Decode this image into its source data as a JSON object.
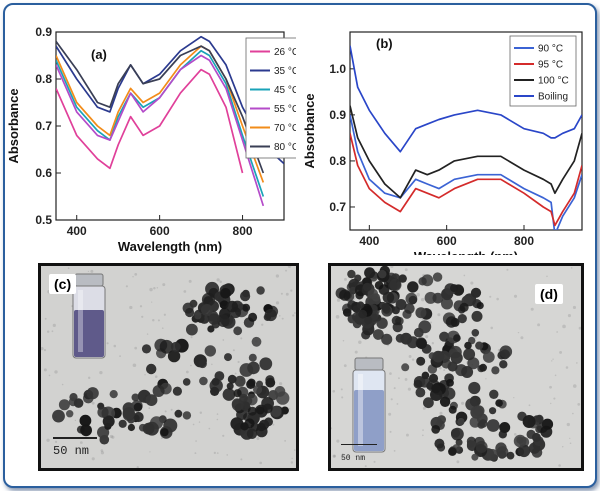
{
  "colors": {
    "frame": "#2b5f9e"
  },
  "chart_data": [
    {
      "type": "line",
      "panel_label": "(a)",
      "xlabel": "Wavelength (nm)",
      "ylabel": "Absorbance",
      "xlim": [
        350,
        900
      ],
      "ylim": [
        0.5,
        0.9
      ],
      "xticks": [
        400,
        600,
        800
      ],
      "yticks": [
        0.5,
        0.6,
        0.7,
        0.8,
        0.9
      ],
      "ytick_labels": [
        "0.5",
        "0.6",
        "0.7",
        "0.8",
        "0.9"
      ],
      "legend_position": "top-right",
      "x": [
        350,
        400,
        450,
        480,
        500,
        530,
        560,
        600,
        650,
        700,
        720,
        760,
        800,
        850,
        900
      ],
      "series": [
        {
          "name": "26 °C",
          "color": "#e0409a",
          "values": [
            0.78,
            0.68,
            0.63,
            0.61,
            0.66,
            0.72,
            0.68,
            0.7,
            0.77,
            0.82,
            0.81,
            0.74,
            0.6,
            null,
            null
          ]
        },
        {
          "name": "35 °C",
          "color": "#2b3a8f",
          "values": [
            0.87,
            0.8,
            0.74,
            0.73,
            0.78,
            0.83,
            0.79,
            0.81,
            0.86,
            0.89,
            0.88,
            0.83,
            0.74,
            0.66,
            0.62
          ]
        },
        {
          "name": "45 °C",
          "color": "#1aa3b8",
          "values": [
            0.84,
            0.74,
            0.69,
            0.67,
            0.72,
            0.77,
            0.74,
            0.76,
            0.82,
            0.86,
            0.85,
            0.79,
            0.68,
            0.55,
            null
          ]
        },
        {
          "name": "55 °C",
          "color": "#b44bc9",
          "values": [
            0.83,
            0.73,
            0.68,
            0.67,
            0.71,
            0.77,
            0.73,
            0.76,
            0.82,
            0.85,
            0.84,
            0.78,
            0.67,
            0.53,
            null
          ]
        },
        {
          "name": "70 °C",
          "color": "#f28c1a",
          "values": [
            0.85,
            0.75,
            0.7,
            0.68,
            0.73,
            0.78,
            0.75,
            0.77,
            0.83,
            0.87,
            0.86,
            0.8,
            0.7,
            0.58,
            null
          ]
        },
        {
          "name": "80 °C",
          "color": "#3a3f55",
          "values": [
            0.88,
            0.82,
            0.75,
            0.74,
            0.79,
            0.83,
            0.79,
            0.8,
            0.85,
            0.87,
            0.86,
            0.8,
            0.72,
            0.6,
            null
          ]
        }
      ]
    },
    {
      "type": "line",
      "panel_label": "(b)",
      "xlabel": "Wavelength (nm)",
      "ylabel": "Absorbance",
      "xlim": [
        350,
        950
      ],
      "ylim": [
        0.65,
        1.08
      ],
      "xticks": [
        400,
        600,
        800
      ],
      "yticks": [
        0.7,
        0.8,
        0.9,
        1.0
      ],
      "ytick_labels": [
        "0.7",
        "0.8",
        "0.9",
        "1.0"
      ],
      "legend_position": "top-right",
      "x": [
        350,
        370,
        400,
        440,
        480,
        520,
        550,
        580,
        620,
        680,
        740,
        800,
        850,
        870,
        880,
        900,
        930,
        950
      ],
      "series": [
        {
          "name": "90 °C",
          "color": "#3b63d4",
          "values": [
            0.9,
            0.82,
            0.76,
            0.73,
            0.72,
            0.76,
            0.75,
            0.74,
            0.76,
            0.77,
            0.77,
            0.74,
            0.72,
            0.71,
            0.64,
            0.68,
            0.72,
            0.77
          ]
        },
        {
          "name": "95 °C",
          "color": "#d42b2b",
          "values": [
            0.86,
            0.79,
            0.74,
            0.71,
            0.69,
            0.74,
            0.73,
            0.72,
            0.74,
            0.76,
            0.76,
            0.73,
            0.7,
            0.69,
            0.66,
            0.69,
            0.73,
            0.79
          ]
        },
        {
          "name": "100 °C",
          "color": "#222222",
          "values": [
            0.92,
            0.85,
            0.8,
            0.75,
            0.72,
            0.78,
            0.77,
            0.78,
            0.8,
            0.81,
            0.81,
            0.78,
            0.76,
            0.75,
            0.73,
            0.76,
            0.8,
            0.86
          ]
        },
        {
          "name": "Boiling",
          "color": "#2a46c8",
          "values": [
            1.05,
            0.96,
            0.91,
            0.86,
            0.82,
            0.87,
            0.88,
            0.89,
            0.9,
            0.91,
            0.9,
            0.87,
            0.86,
            0.85,
            0.85,
            0.86,
            0.87,
            0.9
          ]
        }
      ]
    }
  ],
  "tem": [
    {
      "label": "(c)",
      "scale_text": "50 nm"
    },
    {
      "label": "(d)",
      "scale_text": "50 nm"
    }
  ]
}
